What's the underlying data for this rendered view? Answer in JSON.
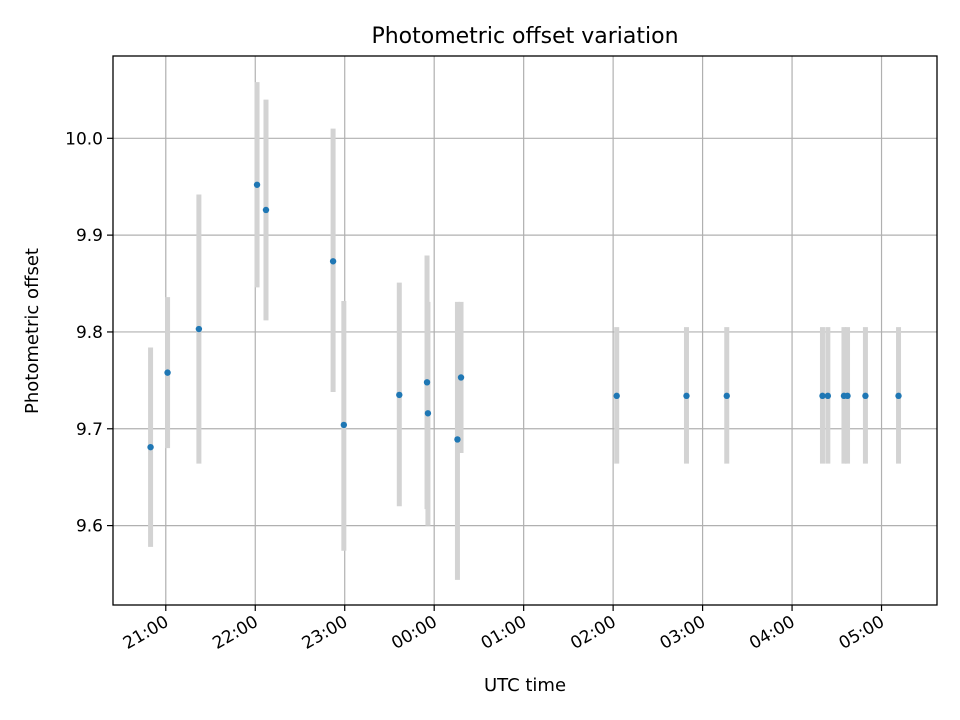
{
  "chart_data": {
    "type": "scatter",
    "title": "Photometric offset variation",
    "xlabel": "UTC time",
    "ylabel": "Photometric offset",
    "x_tick_labels": [
      "21:00",
      "22:00",
      "23:00",
      "00:00",
      "01:00",
      "02:00",
      "03:00",
      "04:00",
      "05:00"
    ],
    "y_tick_labels": [
      "9.6",
      "9.7",
      "9.8",
      "9.9",
      "10.0"
    ],
    "x_ticks_hours": [
      21,
      22,
      23,
      24,
      25,
      26,
      27,
      28,
      29
    ],
    "y_ticks": [
      9.6,
      9.7,
      9.8,
      9.9,
      10.0
    ],
    "xlim_hours": [
      20.41,
      29.62
    ],
    "ylim": [
      9.518,
      10.085
    ],
    "grid": true,
    "errorbar_color": "#d3d3d3",
    "point_color": "#1f77b4",
    "points": [
      {
        "t": "20:50",
        "h": 20.83,
        "y": 9.681,
        "lo": 9.578,
        "hi": 9.784
      },
      {
        "t": "21:01",
        "h": 21.02,
        "y": 9.758,
        "lo": 9.68,
        "hi": 9.836
      },
      {
        "t": "21:22",
        "h": 21.37,
        "y": 9.803,
        "lo": 9.664,
        "hi": 9.942
      },
      {
        "t": "22:01",
        "h": 22.02,
        "y": 9.952,
        "lo": 9.846,
        "hi": 10.058
      },
      {
        "t": "22:07",
        "h": 22.12,
        "y": 9.926,
        "lo": 9.812,
        "hi": 10.04
      },
      {
        "t": "22:52",
        "h": 22.87,
        "y": 9.873,
        "lo": 9.738,
        "hi": 10.01
      },
      {
        "t": "22:59",
        "h": 22.99,
        "y": 9.704,
        "lo": 9.574,
        "hi": 9.832
      },
      {
        "t": "23:37",
        "h": 23.61,
        "y": 9.735,
        "lo": 9.62,
        "hi": 9.851
      },
      {
        "t": "23:55",
        "h": 23.92,
        "y": 9.748,
        "lo": 9.617,
        "hi": 9.879
      },
      {
        "t": "23:56",
        "h": 23.93,
        "y": 9.716,
        "lo": 9.6,
        "hi": 9.831
      },
      {
        "t": "00:15",
        "h": 24.26,
        "y": 9.689,
        "lo": 9.544,
        "hi": 9.831
      },
      {
        "t": "00:18",
        "h": 24.3,
        "y": 9.753,
        "lo": 9.675,
        "hi": 9.831
      },
      {
        "t": "02:03",
        "h": 26.04,
        "y": 9.734,
        "lo": 9.664,
        "hi": 9.805
      },
      {
        "t": "02:49",
        "h": 26.82,
        "y": 9.734,
        "lo": 9.664,
        "hi": 9.805
      },
      {
        "t": "03:16",
        "h": 27.27,
        "y": 9.734,
        "lo": 9.664,
        "hi": 9.805
      },
      {
        "t": "04:20",
        "h": 28.34,
        "y": 9.734,
        "lo": 9.664,
        "hi": 9.805
      },
      {
        "t": "04:24",
        "h": 28.4,
        "y": 9.734,
        "lo": 9.664,
        "hi": 9.805
      },
      {
        "t": "04:35",
        "h": 28.58,
        "y": 9.734,
        "lo": 9.664,
        "hi": 9.805
      },
      {
        "t": "04:37",
        "h": 28.62,
        "y": 9.734,
        "lo": 9.664,
        "hi": 9.805
      },
      {
        "t": "04:49",
        "h": 28.82,
        "y": 9.734,
        "lo": 9.664,
        "hi": 9.805
      },
      {
        "t": "05:11",
        "h": 29.19,
        "y": 9.734,
        "lo": 9.664,
        "hi": 9.805
      }
    ]
  }
}
